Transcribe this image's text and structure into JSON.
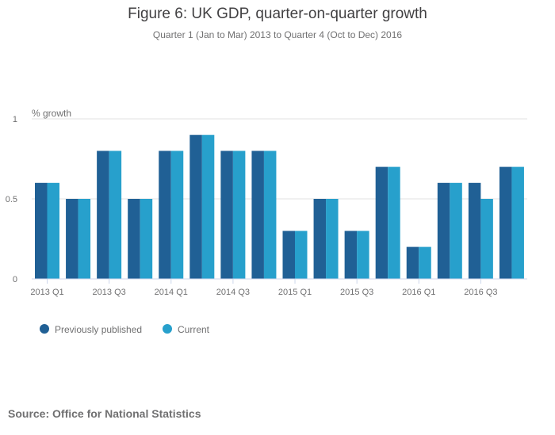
{
  "chart_data": {
    "type": "bar",
    "title": "Figure 6: UK GDP, quarter-on-quarter growth",
    "subtitle": "Quarter 1 (Jan to Mar) 2013 to Quarter 4 (Oct to Dec) 2016",
    "ylabel": "% growth",
    "ylim": [
      0,
      1
    ],
    "yticks": [
      "0",
      "0.5",
      "1"
    ],
    "grid": true,
    "legend_position": "bottom-left",
    "categories": [
      "2013 Q1",
      "2013 Q2",
      "2013 Q3",
      "2013 Q4",
      "2014 Q1",
      "2014 Q2",
      "2014 Q3",
      "2014 Q4",
      "2015 Q1",
      "2015 Q2",
      "2015 Q3",
      "2015 Q4",
      "2016 Q1",
      "2016 Q2",
      "2016 Q3",
      "2016 Q4"
    ],
    "xtick_labels": [
      "2013 Q1",
      "2013 Q3",
      "2014 Q1",
      "2014 Q3",
      "2015 Q1",
      "2015 Q3",
      "2016 Q1",
      "2016 Q3"
    ],
    "series": [
      {
        "name": "Previously published",
        "color": "#206095",
        "values": [
          0.6,
          0.5,
          0.8,
          0.5,
          0.8,
          0.9,
          0.8,
          0.8,
          0.3,
          0.5,
          0.3,
          0.7,
          0.2,
          0.6,
          0.6,
          0.7
        ]
      },
      {
        "name": "Current",
        "color": "#27a0cc",
        "values": [
          0.6,
          0.5,
          0.8,
          0.5,
          0.8,
          0.9,
          0.8,
          0.8,
          0.3,
          0.5,
          0.3,
          0.7,
          0.2,
          0.6,
          0.5,
          0.7
        ]
      }
    ],
    "source": "Source: Office for National Statistics"
  }
}
